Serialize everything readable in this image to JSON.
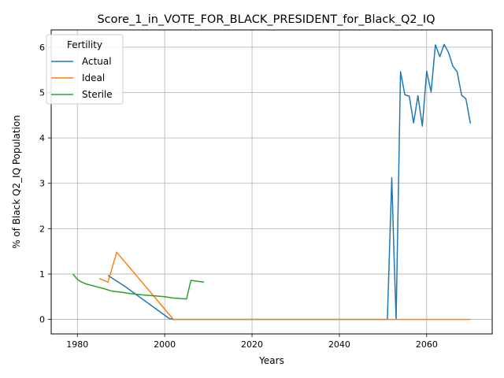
{
  "chart_data": {
    "type": "line",
    "title": "Score_1_in_VOTE_FOR_BLACK_PRESIDENT_for_Black_Q2_IQ",
    "xlabel": "Years",
    "ylabel": "% of Black Q2_IQ Population",
    "xlim": [
      1974,
      2075
    ],
    "ylim": [
      -0.32,
      6.38
    ],
    "xticks": [
      1980,
      2000,
      2020,
      2040,
      2060
    ],
    "yticks": [
      0,
      1,
      2,
      3,
      4,
      5,
      6
    ],
    "grid": true,
    "legend": {
      "title": "Fertility",
      "placement": "top-left"
    },
    "series": [
      {
        "name": "Actual",
        "color": "#1f77b4",
        "points": [
          [
            1987,
            0.97
          ],
          [
            1991,
            0.72
          ],
          [
            2001,
            0.02
          ],
          [
            2002,
            0.0
          ],
          [
            2051,
            0.0
          ],
          [
            2052,
            3.12
          ],
          [
            2052.5,
            1.5
          ],
          [
            2053,
            0.0
          ],
          [
            2054,
            5.46
          ],
          [
            2055,
            4.95
          ],
          [
            2056,
            4.92
          ],
          [
            2057,
            4.33
          ],
          [
            2058,
            4.93
          ],
          [
            2059,
            4.26
          ],
          [
            2060,
            5.47
          ],
          [
            2061,
            5.01
          ],
          [
            2062,
            6.05
          ],
          [
            2063,
            5.79
          ],
          [
            2064,
            6.06
          ],
          [
            2065,
            5.88
          ],
          [
            2066,
            5.58
          ],
          [
            2067,
            5.45
          ],
          [
            2068,
            4.94
          ],
          [
            2069,
            4.86
          ],
          [
            2070,
            4.32
          ]
        ]
      },
      {
        "name": "Ideal",
        "color": "#ff7f0e",
        "points": [
          [
            1985,
            0.9
          ],
          [
            1987,
            0.82
          ],
          [
            1989,
            1.48
          ],
          [
            2002,
            0.0
          ],
          [
            2070,
            0.0
          ]
        ]
      },
      {
        "name": "Sterile",
        "color": "#2ca02c",
        "points": [
          [
            1979,
            1.0
          ],
          [
            1980,
            0.88
          ],
          [
            1981,
            0.82
          ],
          [
            1982,
            0.78
          ],
          [
            1984,
            0.73
          ],
          [
            1986,
            0.68
          ],
          [
            1988,
            0.62
          ],
          [
            1990,
            0.6
          ],
          [
            1992,
            0.57
          ],
          [
            1995,
            0.54
          ],
          [
            2000,
            0.5
          ],
          [
            2002,
            0.47
          ],
          [
            2005,
            0.45
          ],
          [
            2006,
            0.86
          ],
          [
            2009,
            0.82
          ]
        ]
      }
    ]
  }
}
